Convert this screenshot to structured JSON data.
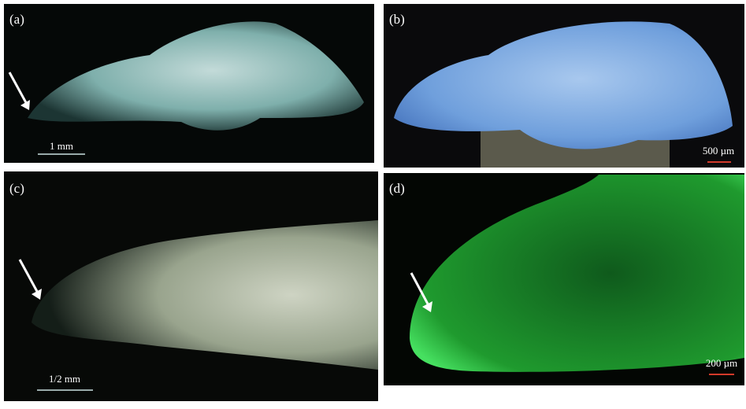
{
  "panels": [
    {
      "label": "(a)",
      "scale_bar": "1 mm"
    },
    {
      "label": "(b)",
      "scale_bar": "500 µm"
    },
    {
      "label": "(c)",
      "scale_bar": "1/2 mm"
    },
    {
      "label": "(d)",
      "scale_bar": "200 µm"
    }
  ]
}
